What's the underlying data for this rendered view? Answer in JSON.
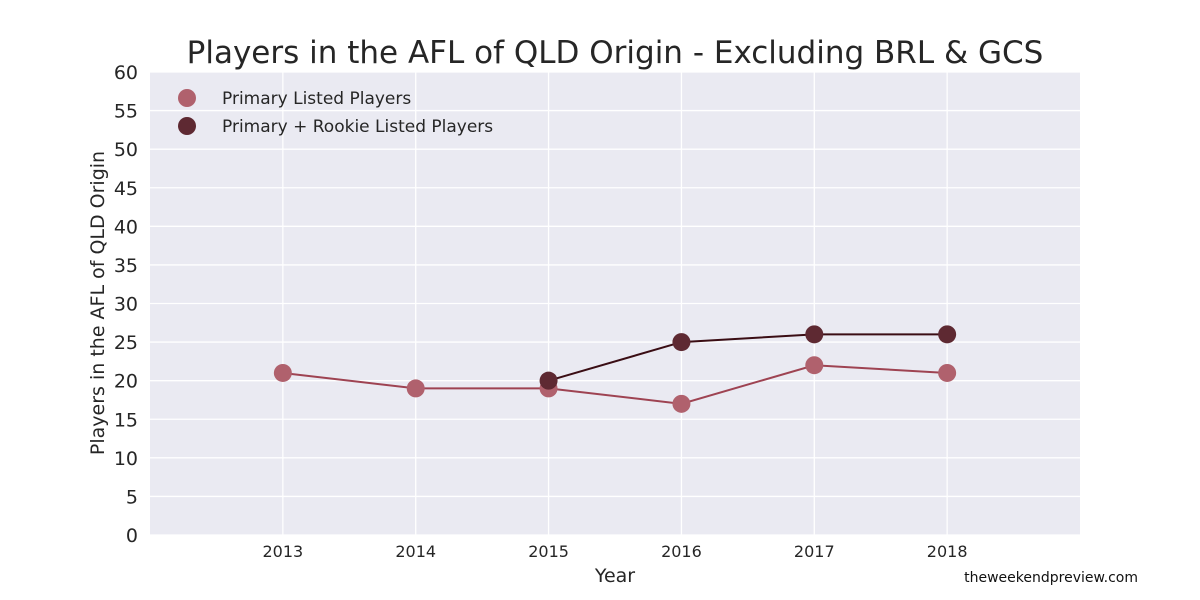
{
  "chart_data": {
    "type": "line",
    "title": "Players in the AFL of QLD Origin - Excluding BRL & GCS",
    "xlabel": "Year",
    "ylabel": "Players in the AFL of QLD Origin",
    "xlim": [
      2012,
      2019
    ],
    "ylim": [
      0,
      60
    ],
    "x_ticks": [
      "2013",
      "2014",
      "2015",
      "2016",
      "2017",
      "2018"
    ],
    "y_ticks": [
      "0",
      "5",
      "10",
      "15",
      "20",
      "25",
      "30",
      "35",
      "40",
      "45",
      "50",
      "55",
      "60"
    ],
    "grid": true,
    "legend_position": "top-left",
    "series": [
      {
        "name": "Primary Listed Players",
        "x": [
          2013,
          2014,
          2015,
          2016,
          2017,
          2018
        ],
        "y": [
          21,
          19,
          19,
          17,
          22,
          21
        ],
        "line_color": "#9e4352",
        "marker_color": "#b0616d"
      },
      {
        "name": "Primary + Rookie Listed Players",
        "x": [
          2015,
          2016,
          2017,
          2018
        ],
        "y": [
          20,
          25,
          26,
          26
        ],
        "line_color": "#3a0d14",
        "marker_color": "#5e2932"
      }
    ]
  },
  "colors": {
    "plot_background": "#eaeaf2",
    "grid": "#ffffff",
    "text": "#262626"
  },
  "watermark": "theweekendpreview.com"
}
